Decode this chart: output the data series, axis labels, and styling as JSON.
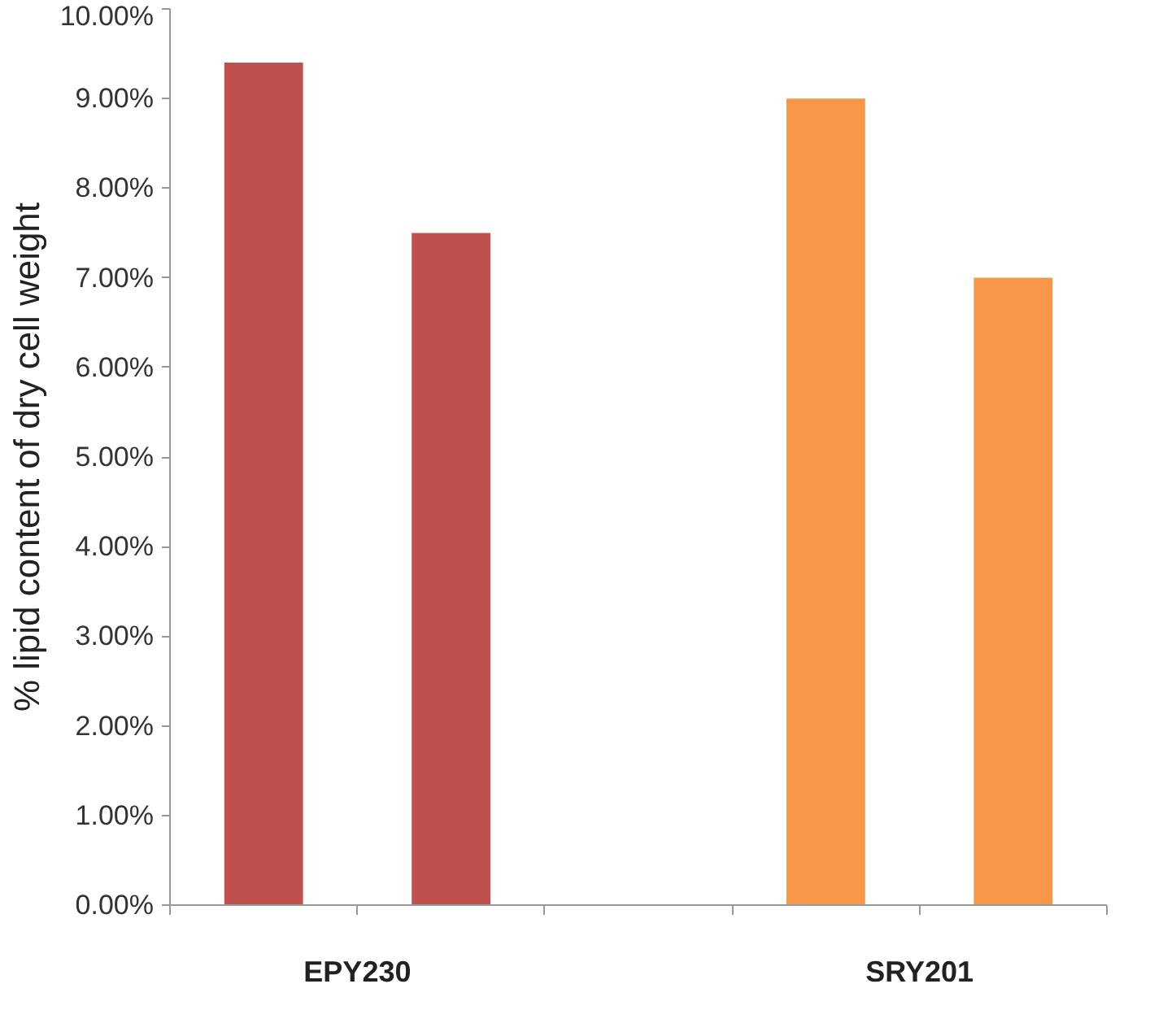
{
  "chart_data": {
    "type": "bar",
    "ylabel": "% lipid content of dry cell weight",
    "categories": [
      "EPY230",
      "SRY201"
    ],
    "series": [
      {
        "colors": [
          "#c0504d",
          "#f79646"
        ],
        "values": [
          9.4,
          9.0
        ]
      },
      {
        "colors": [
          "#c0504d",
          "#f79646"
        ],
        "values": [
          7.5,
          7.0
        ]
      }
    ],
    "ylim": [
      0,
      10
    ],
    "yticks": [
      {
        "value": 0,
        "label": "0.00%"
      },
      {
        "value": 1,
        "label": "1.00%"
      },
      {
        "value": 2,
        "label": "2.00%"
      },
      {
        "value": 3,
        "label": "3.00%"
      },
      {
        "value": 4,
        "label": "4.00%"
      },
      {
        "value": 5,
        "label": "5.00%"
      },
      {
        "value": 6,
        "label": "6.00%"
      },
      {
        "value": 7,
        "label": "7.00%"
      },
      {
        "value": 8,
        "label": "8.00%"
      },
      {
        "value": 9,
        "label": "9.00%"
      },
      {
        "value": 10,
        "label": "10.00%"
      }
    ],
    "grid": false
  }
}
